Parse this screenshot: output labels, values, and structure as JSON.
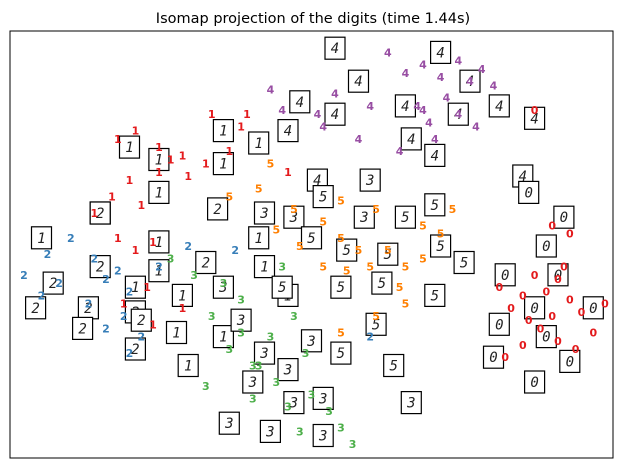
{
  "chart_data": {
    "type": "scatter",
    "title": "Isomap projection of the digits (time 1.44s)",
    "xlabel": "",
    "ylabel": "",
    "xlim": [
      0,
      1
    ],
    "ylim": [
      0,
      1
    ],
    "axes_visible": false,
    "grid": false,
    "legend": "none",
    "class_colors": {
      "0": "#e31a1c",
      "1": "#e41a1c",
      "2": "#377eb8",
      "3": "#4daf4a",
      "4": "#984ea3",
      "5": "#ff7f00"
    },
    "points": [
      {
        "label": "4",
        "x": 0.63,
        "y": 0.97
      },
      {
        "label": "4",
        "x": 0.66,
        "y": 0.92
      },
      {
        "label": "4",
        "x": 0.69,
        "y": 0.94
      },
      {
        "label": "4",
        "x": 0.72,
        "y": 0.91
      },
      {
        "label": "4",
        "x": 0.75,
        "y": 0.95
      },
      {
        "label": "4",
        "x": 0.77,
        "y": 0.9
      },
      {
        "label": "4",
        "x": 0.79,
        "y": 0.93
      },
      {
        "label": "4",
        "x": 0.81,
        "y": 0.89
      },
      {
        "label": "4",
        "x": 0.73,
        "y": 0.86
      },
      {
        "label": "4",
        "x": 0.69,
        "y": 0.83
      },
      {
        "label": "4",
        "x": 0.6,
        "y": 0.84
      },
      {
        "label": "4",
        "x": 0.54,
        "y": 0.87
      },
      {
        "label": "4",
        "x": 0.51,
        "y": 0.82
      },
      {
        "label": "4",
        "x": 0.45,
        "y": 0.83
      },
      {
        "label": "4",
        "x": 0.43,
        "y": 0.88
      },
      {
        "label": "4",
        "x": 0.52,
        "y": 0.79
      },
      {
        "label": "4",
        "x": 0.58,
        "y": 0.76
      },
      {
        "label": "4",
        "x": 0.65,
        "y": 0.73
      },
      {
        "label": "4",
        "x": 0.71,
        "y": 0.76
      },
      {
        "label": "4",
        "x": 0.78,
        "y": 0.79
      },
      {
        "label": "4",
        "x": 0.68,
        "y": 0.84
      },
      {
        "label": "4",
        "x": 0.7,
        "y": 0.8
      },
      {
        "label": "4",
        "x": 0.75,
        "y": 0.82
      },
      {
        "label": "1",
        "x": 0.17,
        "y": 0.76
      },
      {
        "label": "1",
        "x": 0.2,
        "y": 0.78
      },
      {
        "label": "1",
        "x": 0.24,
        "y": 0.74
      },
      {
        "label": "1",
        "x": 0.28,
        "y": 0.72
      },
      {
        "label": "1",
        "x": 0.32,
        "y": 0.7
      },
      {
        "label": "1",
        "x": 0.36,
        "y": 0.73
      },
      {
        "label": "1",
        "x": 0.38,
        "y": 0.79
      },
      {
        "label": "1",
        "x": 0.33,
        "y": 0.82
      },
      {
        "label": "1",
        "x": 0.39,
        "y": 0.82
      },
      {
        "label": "1",
        "x": 0.24,
        "y": 0.68
      },
      {
        "label": "1",
        "x": 0.19,
        "y": 0.66
      },
      {
        "label": "1",
        "x": 0.16,
        "y": 0.62
      },
      {
        "label": "1",
        "x": 0.21,
        "y": 0.6
      },
      {
        "label": "1",
        "x": 0.13,
        "y": 0.58
      },
      {
        "label": "1",
        "x": 0.17,
        "y": 0.52
      },
      {
        "label": "1",
        "x": 0.2,
        "y": 0.49
      },
      {
        "label": "1",
        "x": 0.23,
        "y": 0.51
      },
      {
        "label": "1",
        "x": 0.46,
        "y": 0.68
      },
      {
        "label": "1",
        "x": 0.29,
        "y": 0.67
      },
      {
        "label": "1",
        "x": 0.26,
        "y": 0.71
      },
      {
        "label": "1",
        "x": 0.22,
        "y": 0.4
      },
      {
        "label": "1",
        "x": 0.18,
        "y": 0.36
      },
      {
        "label": "1",
        "x": 0.23,
        "y": 0.31
      },
      {
        "label": "1",
        "x": 0.28,
        "y": 0.35
      },
      {
        "label": "2",
        "x": 0.01,
        "y": 0.43
      },
      {
        "label": "2",
        "x": 0.04,
        "y": 0.38
      },
      {
        "label": "2",
        "x": 0.07,
        "y": 0.41
      },
      {
        "label": "2",
        "x": 0.05,
        "y": 0.48
      },
      {
        "label": "2",
        "x": 0.09,
        "y": 0.52
      },
      {
        "label": "2",
        "x": 0.13,
        "y": 0.47
      },
      {
        "label": "2",
        "x": 0.15,
        "y": 0.42
      },
      {
        "label": "2",
        "x": 0.19,
        "y": 0.39
      },
      {
        "label": "2",
        "x": 0.18,
        "y": 0.33
      },
      {
        "label": "2",
        "x": 0.15,
        "y": 0.3
      },
      {
        "label": "2",
        "x": 0.21,
        "y": 0.28
      },
      {
        "label": "2",
        "x": 0.19,
        "y": 0.24
      },
      {
        "label": "2",
        "x": 0.12,
        "y": 0.36
      },
      {
        "label": "2",
        "x": 0.17,
        "y": 0.44
      },
      {
        "label": "2",
        "x": 0.24,
        "y": 0.45
      },
      {
        "label": "2",
        "x": 0.29,
        "y": 0.5
      },
      {
        "label": "2",
        "x": 0.37,
        "y": 0.49
      },
      {
        "label": "2",
        "x": 0.6,
        "y": 0.28
      },
      {
        "label": "3",
        "x": 0.26,
        "y": 0.47
      },
      {
        "label": "3",
        "x": 0.3,
        "y": 0.43
      },
      {
        "label": "3",
        "x": 0.35,
        "y": 0.41
      },
      {
        "label": "3",
        "x": 0.38,
        "y": 0.37
      },
      {
        "label": "3",
        "x": 0.33,
        "y": 0.33
      },
      {
        "label": "3",
        "x": 0.38,
        "y": 0.29
      },
      {
        "label": "3",
        "x": 0.36,
        "y": 0.25
      },
      {
        "label": "3",
        "x": 0.41,
        "y": 0.21
      },
      {
        "label": "3",
        "x": 0.44,
        "y": 0.17
      },
      {
        "label": "3",
        "x": 0.4,
        "y": 0.13
      },
      {
        "label": "3",
        "x": 0.46,
        "y": 0.11
      },
      {
        "label": "3",
        "x": 0.5,
        "y": 0.14
      },
      {
        "label": "3",
        "x": 0.53,
        "y": 0.1
      },
      {
        "label": "3",
        "x": 0.55,
        "y": 0.06
      },
      {
        "label": "3",
        "x": 0.57,
        "y": 0.02
      },
      {
        "label": "3",
        "x": 0.48,
        "y": 0.05
      },
      {
        "label": "3",
        "x": 0.43,
        "y": 0.28
      },
      {
        "label": "3",
        "x": 0.47,
        "y": 0.33
      },
      {
        "label": "3",
        "x": 0.45,
        "y": 0.45
      },
      {
        "label": "3",
        "x": 0.49,
        "y": 0.24
      },
      {
        "label": "3",
        "x": 0.32,
        "y": 0.16
      },
      {
        "label": "3",
        "x": 0.4,
        "y": 0.21
      },
      {
        "label": "5",
        "x": 0.36,
        "y": 0.62
      },
      {
        "label": "5",
        "x": 0.41,
        "y": 0.64
      },
      {
        "label": "5",
        "x": 0.43,
        "y": 0.7
      },
      {
        "label": "5",
        "x": 0.47,
        "y": 0.59
      },
      {
        "label": "5",
        "x": 0.52,
        "y": 0.56
      },
      {
        "label": "5",
        "x": 0.55,
        "y": 0.52
      },
      {
        "label": "5",
        "x": 0.58,
        "y": 0.49
      },
      {
        "label": "5",
        "x": 0.6,
        "y": 0.45
      },
      {
        "label": "5",
        "x": 0.56,
        "y": 0.44
      },
      {
        "label": "5",
        "x": 0.52,
        "y": 0.45
      },
      {
        "label": "5",
        "x": 0.48,
        "y": 0.5
      },
      {
        "label": "5",
        "x": 0.63,
        "y": 0.49
      },
      {
        "label": "5",
        "x": 0.66,
        "y": 0.45
      },
      {
        "label": "5",
        "x": 0.69,
        "y": 0.47
      },
      {
        "label": "5",
        "x": 0.72,
        "y": 0.53
      },
      {
        "label": "5",
        "x": 0.66,
        "y": 0.36
      },
      {
        "label": "5",
        "x": 0.61,
        "y": 0.33
      },
      {
        "label": "5",
        "x": 0.55,
        "y": 0.29
      },
      {
        "label": "5",
        "x": 0.69,
        "y": 0.55
      },
      {
        "label": "5",
        "x": 0.61,
        "y": 0.59
      },
      {
        "label": "5",
        "x": 0.55,
        "y": 0.61
      },
      {
        "label": "5",
        "x": 0.44,
        "y": 0.54
      },
      {
        "label": "5",
        "x": 0.65,
        "y": 0.4
      },
      {
        "label": "5",
        "x": 0.74,
        "y": 0.59
      },
      {
        "label": "0",
        "x": 0.88,
        "y": 0.83
      },
      {
        "label": "0",
        "x": 0.91,
        "y": 0.55
      },
      {
        "label": "0",
        "x": 0.94,
        "y": 0.53
      },
      {
        "label": "0",
        "x": 0.82,
        "y": 0.4
      },
      {
        "label": "0",
        "x": 0.84,
        "y": 0.35
      },
      {
        "label": "0",
        "x": 0.86,
        "y": 0.38
      },
      {
        "label": "0",
        "x": 0.88,
        "y": 0.43
      },
      {
        "label": "0",
        "x": 0.9,
        "y": 0.39
      },
      {
        "label": "0",
        "x": 0.92,
        "y": 0.42
      },
      {
        "label": "0",
        "x": 0.94,
        "y": 0.37
      },
      {
        "label": "0",
        "x": 0.96,
        "y": 0.34
      },
      {
        "label": "0",
        "x": 0.89,
        "y": 0.3
      },
      {
        "label": "0",
        "x": 0.92,
        "y": 0.27
      },
      {
        "label": "0",
        "x": 0.95,
        "y": 0.25
      },
      {
        "label": "0",
        "x": 0.98,
        "y": 0.29
      },
      {
        "label": "0",
        "x": 1.0,
        "y": 0.36
      },
      {
        "label": "0",
        "x": 0.86,
        "y": 0.26
      },
      {
        "label": "0",
        "x": 0.83,
        "y": 0.23
      },
      {
        "label": "0",
        "x": 0.91,
        "y": 0.33
      },
      {
        "label": "0",
        "x": 0.87,
        "y": 0.32
      },
      {
        "label": "0",
        "x": 0.93,
        "y": 0.45
      }
    ],
    "thumbnails": [
      {
        "digit": "4",
        "x": 0.54,
        "y": 0.98
      },
      {
        "digit": "4",
        "x": 0.58,
        "y": 0.9
      },
      {
        "digit": "4",
        "x": 0.72,
        "y": 0.97
      },
      {
        "digit": "4",
        "x": 0.77,
        "y": 0.9
      },
      {
        "digit": "4",
        "x": 0.66,
        "y": 0.84
      },
      {
        "digit": "4",
        "x": 0.75,
        "y": 0.82
      },
      {
        "digit": "4",
        "x": 0.82,
        "y": 0.84
      },
      {
        "digit": "4",
        "x": 0.88,
        "y": 0.81
      },
      {
        "digit": "4",
        "x": 0.48,
        "y": 0.85
      },
      {
        "digit": "4",
        "x": 0.54,
        "y": 0.82
      },
      {
        "digit": "4",
        "x": 0.46,
        "y": 0.78
      },
      {
        "digit": "4",
        "x": 0.67,
        "y": 0.76
      },
      {
        "digit": "4",
        "x": 0.71,
        "y": 0.72
      },
      {
        "digit": "4",
        "x": 0.51,
        "y": 0.66
      },
      {
        "digit": "4",
        "x": 0.86,
        "y": 0.67
      },
      {
        "digit": "1",
        "x": 0.35,
        "y": 0.78
      },
      {
        "digit": "1",
        "x": 0.41,
        "y": 0.75
      },
      {
        "digit": "1",
        "x": 0.19,
        "y": 0.74
      },
      {
        "digit": "1",
        "x": 0.24,
        "y": 0.71
      },
      {
        "digit": "1",
        "x": 0.35,
        "y": 0.7
      },
      {
        "digit": "1",
        "x": 0.24,
        "y": 0.63
      },
      {
        "digit": "1",
        "x": 0.14,
        "y": 0.58
      },
      {
        "digit": "1",
        "x": 0.04,
        "y": 0.52
      },
      {
        "digit": "1",
        "x": 0.24,
        "y": 0.51
      },
      {
        "digit": "1",
        "x": 0.42,
        "y": 0.45
      },
      {
        "digit": "1",
        "x": 0.24,
        "y": 0.44
      },
      {
        "digit": "1",
        "x": 0.28,
        "y": 0.38
      },
      {
        "digit": "1",
        "x": 0.27,
        "y": 0.29
      },
      {
        "digit": "1",
        "x": 0.35,
        "y": 0.28
      },
      {
        "digit": "1",
        "x": 0.46,
        "y": 0.38
      },
      {
        "digit": "1",
        "x": 0.29,
        "y": 0.21
      },
      {
        "digit": "1",
        "x": 0.41,
        "y": 0.52
      },
      {
        "digit": "1",
        "x": 0.2,
        "y": 0.4
      },
      {
        "digit": "2",
        "x": 0.14,
        "y": 0.58
      },
      {
        "digit": "2",
        "x": 0.14,
        "y": 0.45
      },
      {
        "digit": "2",
        "x": 0.32,
        "y": 0.46
      },
      {
        "digit": "2",
        "x": 0.06,
        "y": 0.41
      },
      {
        "digit": "2",
        "x": 0.03,
        "y": 0.35
      },
      {
        "digit": "2",
        "x": 0.12,
        "y": 0.35
      },
      {
        "digit": "2",
        "x": 0.2,
        "y": 0.34
      },
      {
        "digit": "2",
        "x": 0.21,
        "y": 0.32
      },
      {
        "digit": "2",
        "x": 0.11,
        "y": 0.3
      },
      {
        "digit": "2",
        "x": 0.2,
        "y": 0.25
      },
      {
        "digit": "2",
        "x": 0.34,
        "y": 0.59
      },
      {
        "digit": "3",
        "x": 0.35,
        "y": 0.4
      },
      {
        "digit": "3",
        "x": 0.38,
        "y": 0.32
      },
      {
        "digit": "3",
        "x": 0.42,
        "y": 0.24
      },
      {
        "digit": "3",
        "x": 0.5,
        "y": 0.27
      },
      {
        "digit": "3",
        "x": 0.46,
        "y": 0.2
      },
      {
        "digit": "3",
        "x": 0.4,
        "y": 0.17
      },
      {
        "digit": "3",
        "x": 0.52,
        "y": 0.13
      },
      {
        "digit": "3",
        "x": 0.47,
        "y": 0.12
      },
      {
        "digit": "3",
        "x": 0.36,
        "y": 0.07
      },
      {
        "digit": "3",
        "x": 0.43,
        "y": 0.05
      },
      {
        "digit": "3",
        "x": 0.52,
        "y": 0.04
      },
      {
        "digit": "3",
        "x": 0.67,
        "y": 0.12
      },
      {
        "digit": "3",
        "x": 0.42,
        "y": 0.58
      },
      {
        "digit": "3",
        "x": 0.6,
        "y": 0.66
      },
      {
        "digit": "3",
        "x": 0.47,
        "y": 0.57
      },
      {
        "digit": "3",
        "x": 0.59,
        "y": 0.57
      },
      {
        "digit": "5",
        "x": 0.52,
        "y": 0.62
      },
      {
        "digit": "5",
        "x": 0.66,
        "y": 0.57
      },
      {
        "digit": "5",
        "x": 0.71,
        "y": 0.6
      },
      {
        "digit": "5",
        "x": 0.5,
        "y": 0.52
      },
      {
        "digit": "5",
        "x": 0.56,
        "y": 0.49
      },
      {
        "digit": "5",
        "x": 0.63,
        "y": 0.48
      },
      {
        "digit": "5",
        "x": 0.72,
        "y": 0.5
      },
      {
        "digit": "5",
        "x": 0.76,
        "y": 0.46
      },
      {
        "digit": "5",
        "x": 0.45,
        "y": 0.4
      },
      {
        "digit": "5",
        "x": 0.55,
        "y": 0.4
      },
      {
        "digit": "5",
        "x": 0.62,
        "y": 0.41
      },
      {
        "digit": "5",
        "x": 0.71,
        "y": 0.38
      },
      {
        "digit": "5",
        "x": 0.61,
        "y": 0.31
      },
      {
        "digit": "5",
        "x": 0.55,
        "y": 0.24
      },
      {
        "digit": "5",
        "x": 0.64,
        "y": 0.21
      },
      {
        "digit": "0",
        "x": 0.93,
        "y": 0.57
      },
      {
        "digit": "0",
        "x": 0.87,
        "y": 0.63
      },
      {
        "digit": "0",
        "x": 0.9,
        "y": 0.5
      },
      {
        "digit": "0",
        "x": 0.83,
        "y": 0.43
      },
      {
        "digit": "0",
        "x": 0.92,
        "y": 0.43
      },
      {
        "digit": "0",
        "x": 0.88,
        "y": 0.35
      },
      {
        "digit": "0",
        "x": 0.98,
        "y": 0.35
      },
      {
        "digit": "0",
        "x": 0.82,
        "y": 0.31
      },
      {
        "digit": "0",
        "x": 0.9,
        "y": 0.28
      },
      {
        "digit": "0",
        "x": 0.81,
        "y": 0.23
      },
      {
        "digit": "0",
        "x": 0.94,
        "y": 0.22
      },
      {
        "digit": "0",
        "x": 0.88,
        "y": 0.17
      }
    ]
  }
}
